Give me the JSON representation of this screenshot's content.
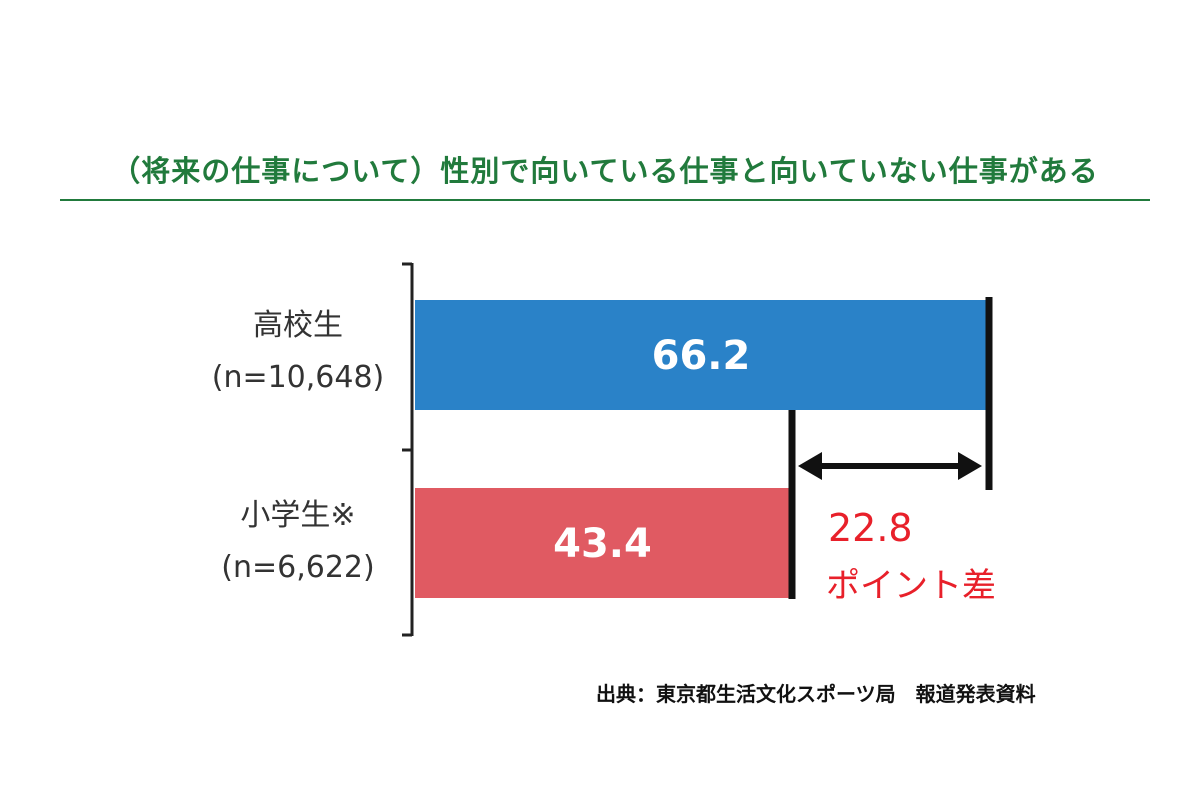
{
  "chart_data": {
    "type": "bar",
    "orientation": "horizontal",
    "title": "（将来の仕事について）性別で向いている仕事と向いていない仕事がある",
    "categories": [
      {
        "name": "高校生",
        "n": "(n=10,648)"
      },
      {
        "name": "小学生※",
        "n": "(n=6,622)"
      }
    ],
    "values": [
      66.2,
      43.4
    ],
    "data_labels": [
      "66.2",
      "43.4"
    ],
    "colors": [
      "#2a82c8",
      "#e05a62"
    ],
    "xlim": [
      0,
      100
    ],
    "grid": false,
    "annotation": {
      "value": "22.8",
      "label": "ポイント差",
      "color": "#e8202a"
    },
    "source": "出典：東京都生活文化スポーツ局　報道発表資料"
  }
}
